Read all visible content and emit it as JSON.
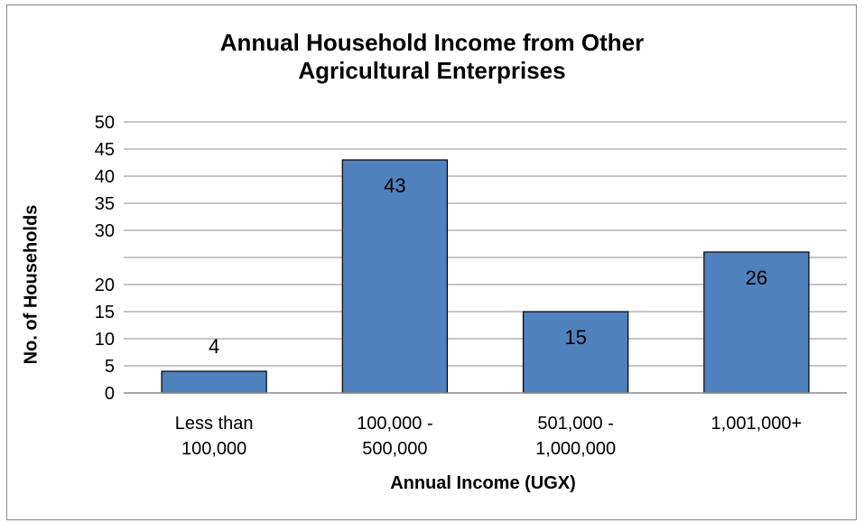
{
  "chart_data": {
    "type": "bar",
    "title_lines": [
      "Annual Household Income from Other",
      "Agricultural Enterprises"
    ],
    "categories": [
      [
        "Less than",
        "100,000"
      ],
      [
        "100,000 -",
        "500,000"
      ],
      [
        "501,000 -",
        "1,000,000"
      ],
      [
        "1,001,000+"
      ]
    ],
    "values": [
      4,
      43,
      15,
      26
    ],
    "data_labels": [
      "4",
      "43",
      "15",
      "26"
    ],
    "xlabel": "Annual Income (UGX)",
    "ylabel": "No. of Households",
    "yticks": [
      "0",
      "5",
      "10",
      "15",
      "20",
      "30",
      "35",
      "40",
      "45",
      "50"
    ],
    "ylim": [
      0,
      50
    ],
    "grid": true,
    "legend": "none",
    "colors": {
      "bar_fill": "#4f81bd",
      "bar_stroke": "#000000",
      "grid": "#8c8c8c",
      "axis": "#8c8c8c"
    }
  }
}
